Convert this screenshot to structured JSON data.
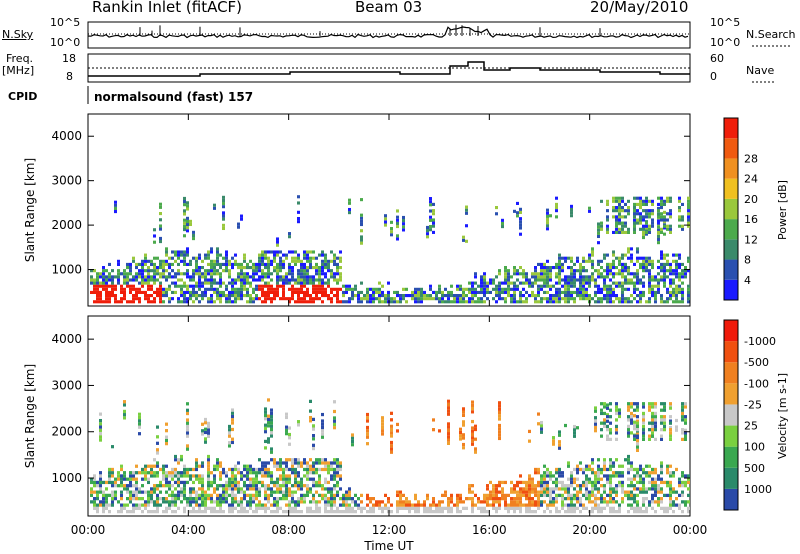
{
  "header": {
    "title": "Rankin Inlet (fitACF)",
    "beam": "Beam 03",
    "date": "20/May/2010"
  },
  "panels": {
    "nsky": {
      "label": "N.Sky",
      "left_ticks": [
        "10^5",
        "10^0"
      ],
      "right_ticks": [
        "10^5",
        "10^0"
      ],
      "right_label": "N.Search"
    },
    "freq": {
      "label_line1": "Freq.",
      "label_line2": "[MHz]",
      "left_ticks": [
        "18",
        "8"
      ],
      "right_ticks": [
        "60",
        "0"
      ],
      "right_label": "Nave"
    },
    "cpid": {
      "label": "CPID",
      "text": "normalsound (fast) 157"
    }
  },
  "chart_data": [
    {
      "type": "heatmap",
      "quantity": "Power",
      "ylabel": "Slant Range [km]",
      "yticks": [
        1000,
        2000,
        3000,
        4000
      ],
      "ylim": [
        180,
        4500
      ],
      "colorbar": {
        "label": "Power [dB]",
        "ticks": [
          "4",
          "8",
          "12",
          "16",
          "20",
          "24",
          "28"
        ],
        "colors": [
          "#1a1aff",
          "#2a50b0",
          "#3a8a6a",
          "#4caa4c",
          "#9ac83c",
          "#f0c020",
          "#f09020",
          "#f05a10",
          "#f01e0a"
        ]
      }
    },
    {
      "type": "heatmap",
      "quantity": "Velocity",
      "ylabel": "Slant Range [km]",
      "xlabel": "Time UT",
      "xticks": [
        "00:00",
        "04:00",
        "08:00",
        "12:00",
        "16:00",
        "20:00",
        "00:00"
      ],
      "yticks": [
        1000,
        2000,
        3000,
        4000
      ],
      "ylim": [
        180,
        4500
      ],
      "colorbar": {
        "label": "Velocity [m s-1]",
        "ticks": [
          "1000",
          "500",
          "100",
          "25",
          "-25",
          "-100",
          "-500",
          "-1000"
        ],
        "colors": [
          "#2a4aa8",
          "#2a8a6a",
          "#3aa850",
          "#7ad040",
          "#c8c8c8",
          "#f0a030",
          "#f08020",
          "#f05010",
          "#f01a0a"
        ]
      }
    }
  ]
}
